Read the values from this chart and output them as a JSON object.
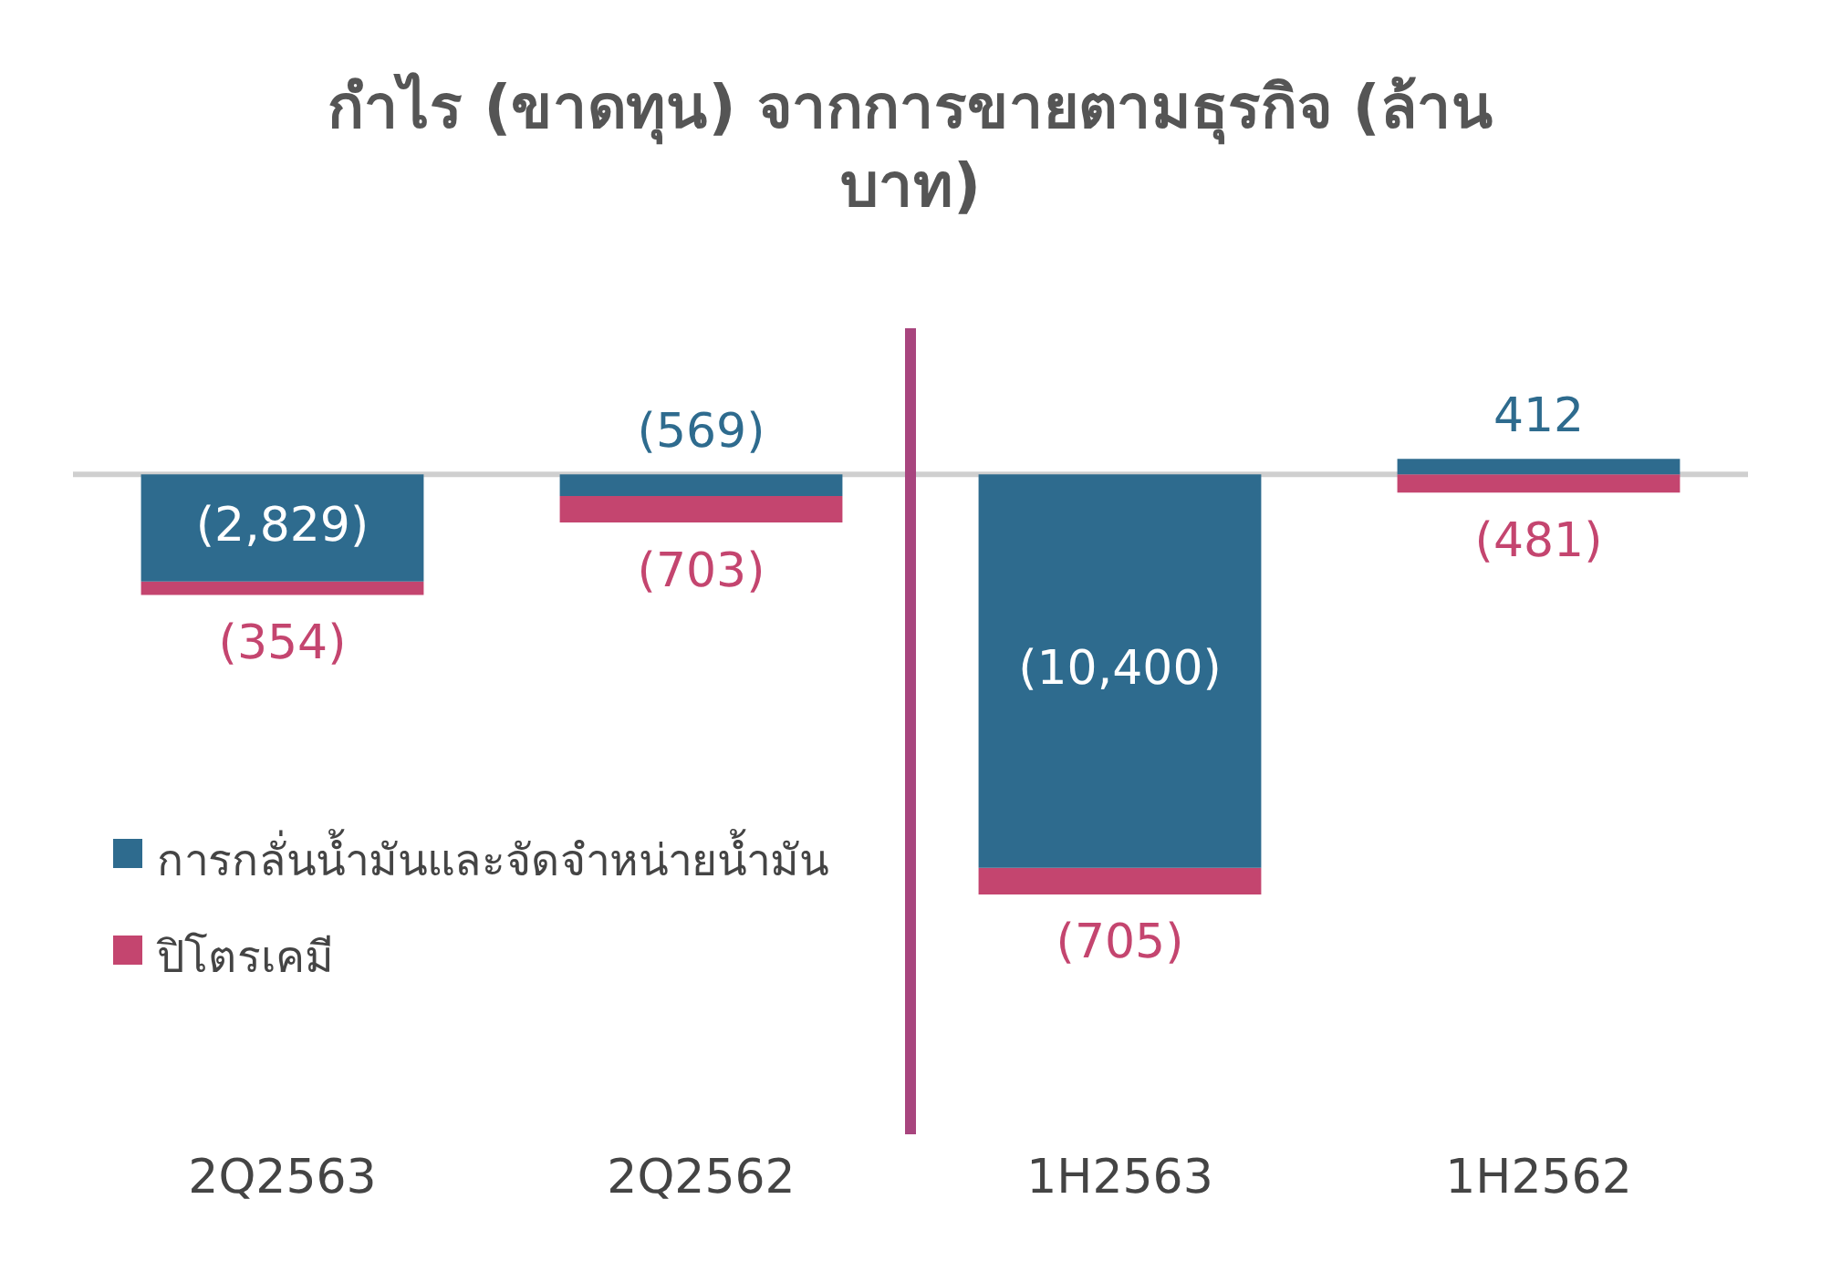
{
  "chart_data": {
    "type": "bar",
    "stacked": true,
    "title": "กำไร (ขาดทุน) จากการขายตามธุรกิจ (ล้านบาท)",
    "categories": [
      "2Q2563",
      "2Q2562",
      "1H2563",
      "1H2562"
    ],
    "series": [
      {
        "name": "การกลั่นน้ำมันและจัดจำหน่ายน้ำมัน",
        "color": "#2e6b8e",
        "values": [
          -2829,
          -569,
          -10400,
          412
        ],
        "value_labels": [
          "(2,829)",
          "(569)",
          "(10,400)",
          "412"
        ]
      },
      {
        "name": "ปิโตรเคมี",
        "color": "#c4456f",
        "values": [
          -354,
          -703,
          -705,
          -481
        ],
        "value_labels": [
          "(354)",
          "(703)",
          "(705)",
          "(481)"
        ]
      }
    ],
    "legend": "left",
    "grid": false
  }
}
